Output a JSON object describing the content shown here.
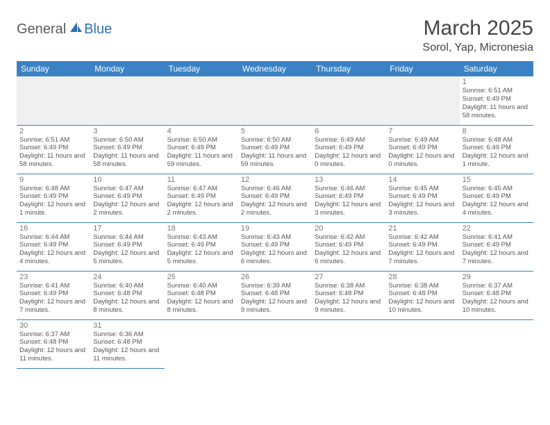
{
  "logo": {
    "part1": "General",
    "part2": "Blue"
  },
  "title": "March 2025",
  "location": "Sorol, Yap, Micronesia",
  "colors": {
    "header_bg": "#3b82c4",
    "header_text": "#ffffff",
    "border": "#3b82c4",
    "empty_bg": "#f0f0f0",
    "text": "#555555",
    "logo_gray": "#5a5a5a",
    "logo_blue": "#2f6fb0"
  },
  "weekdays": [
    "Sunday",
    "Monday",
    "Tuesday",
    "Wednesday",
    "Thursday",
    "Friday",
    "Saturday"
  ],
  "weeks": [
    [
      null,
      null,
      null,
      null,
      null,
      null,
      {
        "n": "1",
        "sr": "Sunrise: 6:51 AM",
        "ss": "Sunset: 6:49 PM",
        "dl": "Daylight: 11 hours and 58 minutes."
      }
    ],
    [
      {
        "n": "2",
        "sr": "Sunrise: 6:51 AM",
        "ss": "Sunset: 6:49 PM",
        "dl": "Daylight: 11 hours and 58 minutes."
      },
      {
        "n": "3",
        "sr": "Sunrise: 6:50 AM",
        "ss": "Sunset: 6:49 PM",
        "dl": "Daylight: 11 hours and 58 minutes."
      },
      {
        "n": "4",
        "sr": "Sunrise: 6:50 AM",
        "ss": "Sunset: 6:49 PM",
        "dl": "Daylight: 11 hours and 59 minutes."
      },
      {
        "n": "5",
        "sr": "Sunrise: 6:50 AM",
        "ss": "Sunset: 6:49 PM",
        "dl": "Daylight: 11 hours and 59 minutes."
      },
      {
        "n": "6",
        "sr": "Sunrise: 6:49 AM",
        "ss": "Sunset: 6:49 PM",
        "dl": "Daylight: 12 hours and 0 minutes."
      },
      {
        "n": "7",
        "sr": "Sunrise: 6:49 AM",
        "ss": "Sunset: 6:49 PM",
        "dl": "Daylight: 12 hours and 0 minutes."
      },
      {
        "n": "8",
        "sr": "Sunrise: 6:48 AM",
        "ss": "Sunset: 6:49 PM",
        "dl": "Daylight: 12 hours and 1 minute."
      }
    ],
    [
      {
        "n": "9",
        "sr": "Sunrise: 6:48 AM",
        "ss": "Sunset: 6:49 PM",
        "dl": "Daylight: 12 hours and 1 minute."
      },
      {
        "n": "10",
        "sr": "Sunrise: 6:47 AM",
        "ss": "Sunset: 6:49 PM",
        "dl": "Daylight: 12 hours and 2 minutes."
      },
      {
        "n": "11",
        "sr": "Sunrise: 6:47 AM",
        "ss": "Sunset: 6:49 PM",
        "dl": "Daylight: 12 hours and 2 minutes."
      },
      {
        "n": "12",
        "sr": "Sunrise: 6:46 AM",
        "ss": "Sunset: 6:49 PM",
        "dl": "Daylight: 12 hours and 2 minutes."
      },
      {
        "n": "13",
        "sr": "Sunrise: 6:46 AM",
        "ss": "Sunset: 6:49 PM",
        "dl": "Daylight: 12 hours and 3 minutes."
      },
      {
        "n": "14",
        "sr": "Sunrise: 6:45 AM",
        "ss": "Sunset: 6:49 PM",
        "dl": "Daylight: 12 hours and 3 minutes."
      },
      {
        "n": "15",
        "sr": "Sunrise: 6:45 AM",
        "ss": "Sunset: 6:49 PM",
        "dl": "Daylight: 12 hours and 4 minutes."
      }
    ],
    [
      {
        "n": "16",
        "sr": "Sunrise: 6:44 AM",
        "ss": "Sunset: 6:49 PM",
        "dl": "Daylight: 12 hours and 4 minutes."
      },
      {
        "n": "17",
        "sr": "Sunrise: 6:44 AM",
        "ss": "Sunset: 6:49 PM",
        "dl": "Daylight: 12 hours and 5 minutes."
      },
      {
        "n": "18",
        "sr": "Sunrise: 6:43 AM",
        "ss": "Sunset: 6:49 PM",
        "dl": "Daylight: 12 hours and 5 minutes."
      },
      {
        "n": "19",
        "sr": "Sunrise: 6:43 AM",
        "ss": "Sunset: 6:49 PM",
        "dl": "Daylight: 12 hours and 6 minutes."
      },
      {
        "n": "20",
        "sr": "Sunrise: 6:42 AM",
        "ss": "Sunset: 6:49 PM",
        "dl": "Daylight: 12 hours and 6 minutes."
      },
      {
        "n": "21",
        "sr": "Sunrise: 6:42 AM",
        "ss": "Sunset: 6:49 PM",
        "dl": "Daylight: 12 hours and 7 minutes."
      },
      {
        "n": "22",
        "sr": "Sunrise: 6:41 AM",
        "ss": "Sunset: 6:49 PM",
        "dl": "Daylight: 12 hours and 7 minutes."
      }
    ],
    [
      {
        "n": "23",
        "sr": "Sunrise: 6:41 AM",
        "ss": "Sunset: 6:49 PM",
        "dl": "Daylight: 12 hours and 7 minutes."
      },
      {
        "n": "24",
        "sr": "Sunrise: 6:40 AM",
        "ss": "Sunset: 6:48 PM",
        "dl": "Daylight: 12 hours and 8 minutes."
      },
      {
        "n": "25",
        "sr": "Sunrise: 6:40 AM",
        "ss": "Sunset: 6:48 PM",
        "dl": "Daylight: 12 hours and 8 minutes."
      },
      {
        "n": "26",
        "sr": "Sunrise: 6:39 AM",
        "ss": "Sunset: 6:48 PM",
        "dl": "Daylight: 12 hours and 9 minutes."
      },
      {
        "n": "27",
        "sr": "Sunrise: 6:38 AM",
        "ss": "Sunset: 6:48 PM",
        "dl": "Daylight: 12 hours and 9 minutes."
      },
      {
        "n": "28",
        "sr": "Sunrise: 6:38 AM",
        "ss": "Sunset: 6:48 PM",
        "dl": "Daylight: 12 hours and 10 minutes."
      },
      {
        "n": "29",
        "sr": "Sunrise: 6:37 AM",
        "ss": "Sunset: 6:48 PM",
        "dl": "Daylight: 12 hours and 10 minutes."
      }
    ],
    [
      {
        "n": "30",
        "sr": "Sunrise: 6:37 AM",
        "ss": "Sunset: 6:48 PM",
        "dl": "Daylight: 12 hours and 11 minutes."
      },
      {
        "n": "31",
        "sr": "Sunrise: 6:36 AM",
        "ss": "Sunset: 6:48 PM",
        "dl": "Daylight: 12 hours and 11 minutes."
      },
      null,
      null,
      null,
      null,
      null
    ]
  ]
}
